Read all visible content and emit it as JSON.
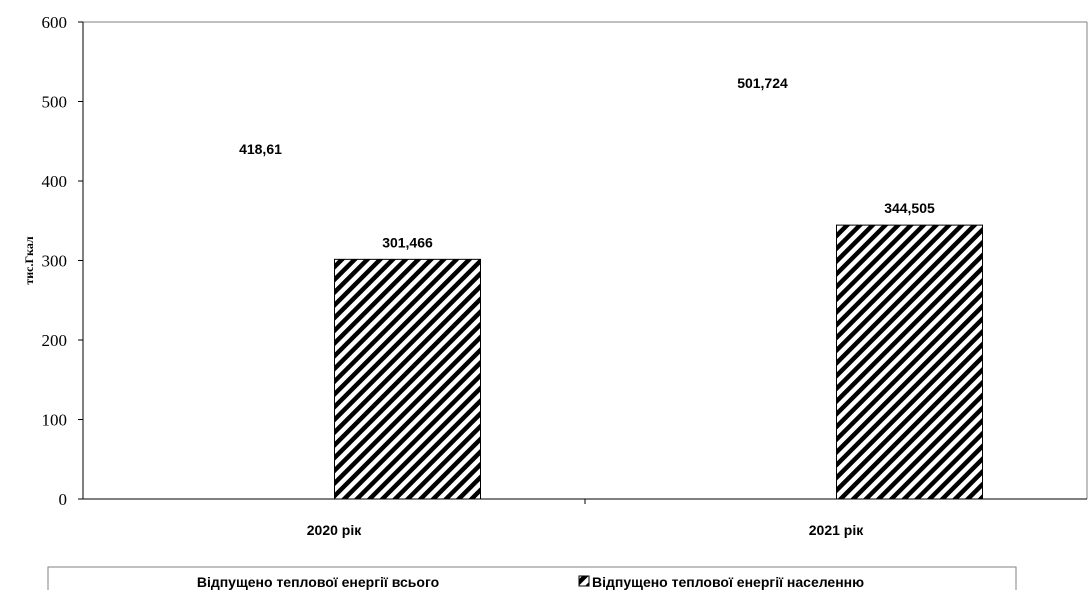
{
  "chart_data": {
    "type": "bar",
    "categories": [
      "2020 рік",
      "2021 рік"
    ],
    "series": [
      {
        "name": "Відпущено теплової енергії всього",
        "values": [
          418.61,
          501.724
        ],
        "labels": [
          "418,61",
          "501,724"
        ],
        "fill": "none",
        "color": "#ffffff"
      },
      {
        "name": "Відпущено теплової енергії населенню",
        "values": [
          301.466,
          344.505
        ],
        "labels": [
          "301,466",
          "344,505"
        ],
        "fill": "diagonal-hatch",
        "color": "#000000"
      }
    ],
    "title": "",
    "xlabel": "",
    "ylabel": "тис.Гкал",
    "ylim": [
      0,
      600
    ],
    "yticks": [
      0,
      100,
      200,
      300,
      400,
      500,
      600
    ],
    "grid": false,
    "legend_position": "bottom"
  }
}
